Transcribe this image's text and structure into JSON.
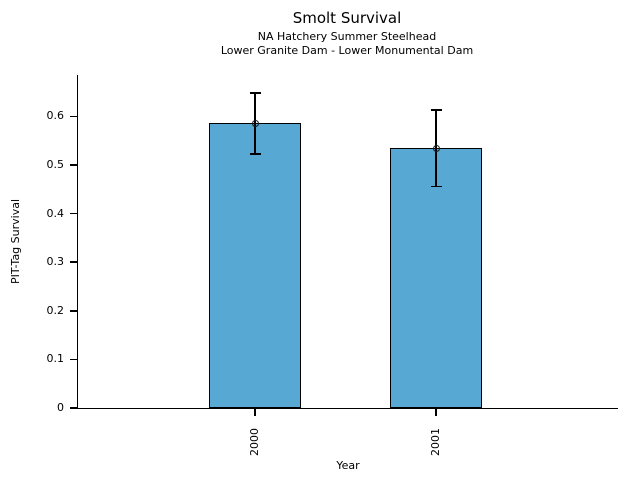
{
  "chart_data": {
    "type": "bar",
    "title": "Smolt Survival",
    "subtitle": [
      "NA Hatchery Summer Steelhead",
      "Lower Granite Dam - Lower Monumental Dam"
    ],
    "xlabel": "Year",
    "ylabel": "PIT-Tag Survival",
    "categories": [
      "2000",
      "2001"
    ],
    "values": [
      0.586,
      0.534
    ],
    "error_low": [
      0.523,
      0.456
    ],
    "error_high": [
      0.648,
      0.613
    ],
    "yticks": [
      0,
      0.1,
      0.2,
      0.3,
      0.4,
      0.5,
      0.6
    ],
    "ytick_labels": [
      "0",
      "0.1",
      "0.2",
      "0.3",
      "0.4",
      "0.5",
      "0.6"
    ],
    "ylim": [
      0,
      0.685
    ],
    "bar_color": "#58A8D4",
    "bar_edge_color": "#000000",
    "error_bar_color": "#000000",
    "marker": "open-circle",
    "grid": false,
    "legend": null
  }
}
